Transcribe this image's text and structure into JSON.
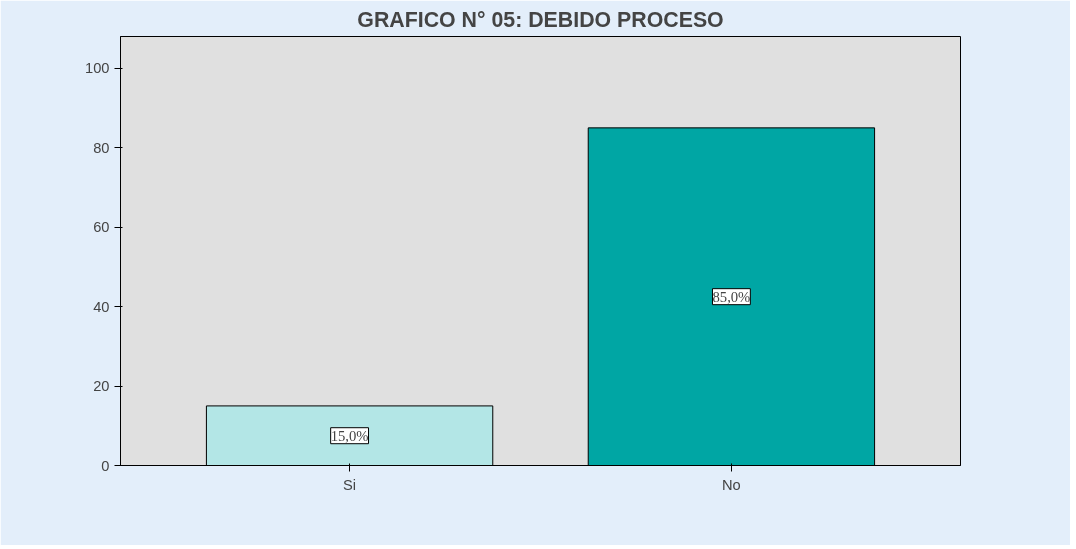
{
  "chart_data": {
    "type": "bar",
    "title": "GRAFICO N° 05: DEBIDO PROCESO",
    "categories": [
      "Si",
      "No"
    ],
    "values": [
      15,
      85
    ],
    "colors": [
      "#b3e6e6",
      "#00a6a4"
    ],
    "value_labels": [
      "15,0%",
      "85,0%"
    ],
    "ylim": [
      0,
      108
    ],
    "yticks": [
      0,
      20,
      40,
      60,
      80,
      100
    ],
    "grid": false
  }
}
